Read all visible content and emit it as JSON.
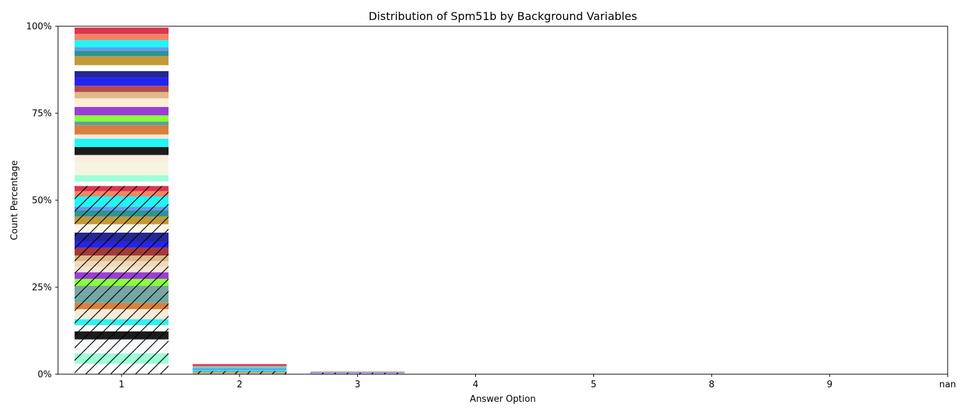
{
  "chart_data": {
    "type": "bar",
    "stacked": true,
    "title": "Distribution of Spm51b by Background Variables",
    "xlabel": "Answer Option",
    "ylabel": "Count Percentage",
    "categories": [
      "1",
      "2",
      "3",
      "4",
      "5",
      "8",
      "9",
      "nan"
    ],
    "ylim": [
      0,
      100
    ],
    "yticks": [
      {
        "value": 0,
        "label": "0%"
      },
      {
        "value": 25,
        "label": "25%"
      },
      {
        "value": 50,
        "label": "50%"
      },
      {
        "value": 75,
        "label": "75%"
      },
      {
        "value": 100,
        "label": "100%"
      }
    ],
    "grid": false,
    "legend": "none",
    "stacks": [
      {
        "category": "1",
        "segments": [
          {
            "value": 3.0,
            "color": "#ffffff",
            "hatch": true
          },
          {
            "value": 3.0,
            "color": "#9cffd6",
            "hatch": true
          },
          {
            "value": 1.5,
            "color": "#f7fbfb",
            "hatch": true
          },
          {
            "value": 2.5,
            "color": "#f8f8ff",
            "hatch": true
          },
          {
            "value": 2.3,
            "color": "#1c1c1c",
            "hatch": true
          },
          {
            "value": 1.8,
            "color": "#ffffff",
            "hatch": true
          },
          {
            "value": 1.7,
            "color": "#2ff2f2",
            "hatch": true
          },
          {
            "value": 1.4,
            "color": "#f3ecdc",
            "hatch": true
          },
          {
            "value": 1.5,
            "color": "#f9ead6",
            "hatch": true
          },
          {
            "value": 1.8,
            "color": "#d8823e",
            "hatch": true
          },
          {
            "value": 2.4,
            "color": "#6fa8a4",
            "hatch": true
          },
          {
            "value": 2.5,
            "color": "#7aa5a5",
            "hatch": true
          },
          {
            "value": 2.0,
            "color": "#8aff3a",
            "hatch": true
          },
          {
            "value": 1.9,
            "color": "#9b3ed6",
            "hatch": true
          },
          {
            "value": 1.6,
            "color": "#f2e6d2",
            "hatch": true
          },
          {
            "value": 1.6,
            "color": "#efd9b8",
            "hatch": true
          },
          {
            "value": 1.6,
            "color": "#deb887",
            "hatch": true
          },
          {
            "value": 2.3,
            "color": "#a33a3a",
            "hatch": true
          },
          {
            "value": 1.7,
            "color": "#2424f0",
            "hatch": true
          },
          {
            "value": 2.6,
            "color": "#262696",
            "hatch": true
          },
          {
            "value": 2.4,
            "color": "#faf6e8",
            "hatch": true
          },
          {
            "value": 2.2,
            "color": "#c49a38",
            "hatch": true
          },
          {
            "value": 1.8,
            "color": "#2e9494",
            "hatch": true
          },
          {
            "value": 1.0,
            "color": "#6699ee",
            "hatch": true
          },
          {
            "value": 3.0,
            "color": "#22f5f5",
            "hatch": true
          },
          {
            "value": 1.5,
            "color": "#f08566",
            "hatch": true
          },
          {
            "value": 1.5,
            "color": "#dc3550",
            "hatch": true
          },
          {
            "value": 1.3,
            "color": "#ffffff",
            "hatch": false
          },
          {
            "value": 1.8,
            "color": "#9dffd8",
            "hatch": false
          },
          {
            "value": 3.8,
            "color": "#f5f5e1",
            "hatch": false
          },
          {
            "value": 2.0,
            "color": "#fbeede",
            "hatch": false
          },
          {
            "value": 2.3,
            "color": "#1c1c1c",
            "hatch": false
          },
          {
            "value": 2.4,
            "color": "#22f5f5",
            "hatch": false
          },
          {
            "value": 1.2,
            "color": "#fbe7d4",
            "hatch": false
          },
          {
            "value": 2.7,
            "color": "#d77f3e",
            "hatch": false
          },
          {
            "value": 1.0,
            "color": "#5aa19e",
            "hatch": false
          },
          {
            "value": 1.8,
            "color": "#8aff3a",
            "hatch": false
          },
          {
            "value": 2.4,
            "color": "#9b3ed6",
            "hatch": false
          },
          {
            "value": 2.5,
            "color": "#fcefd6",
            "hatch": false
          },
          {
            "value": 1.8,
            "color": "#deb887",
            "hatch": false
          },
          {
            "value": 1.8,
            "color": "#b04c4c",
            "hatch": false
          },
          {
            "value": 2.4,
            "color": "#2424f0",
            "hatch": false
          },
          {
            "value": 1.8,
            "color": "#262696",
            "hatch": false
          },
          {
            "value": 1.7,
            "color": "#ffffff",
            "hatch": false
          },
          {
            "value": 2.6,
            "color": "#c49a38",
            "hatch": false
          },
          {
            "value": 1.6,
            "color": "#2e9494",
            "hatch": false
          },
          {
            "value": 1.0,
            "color": "#6699ee",
            "hatch": false
          },
          {
            "value": 2.0,
            "color": "#22f5f5",
            "hatch": false
          },
          {
            "value": 1.8,
            "color": "#f08566",
            "hatch": false
          },
          {
            "value": 1.8,
            "color": "#dc3550",
            "hatch": false
          }
        ]
      },
      {
        "category": "2",
        "segments": [
          {
            "value": 0.5,
            "color": "#f2b880",
            "hatch": true
          },
          {
            "value": 0.4,
            "color": "#6fa8a4",
            "hatch": true
          },
          {
            "value": 0.3,
            "color": "#22f5f5",
            "hatch": false
          },
          {
            "value": 0.5,
            "color": "#6699ee",
            "hatch": false
          },
          {
            "value": 0.4,
            "color": "#22f5f5",
            "hatch": false
          },
          {
            "value": 0.3,
            "color": "#f08566",
            "hatch": false
          },
          {
            "value": 0.5,
            "color": "#dc3550",
            "hatch": false
          }
        ]
      },
      {
        "category": "3",
        "segments": [
          {
            "value": 0.4,
            "color": "#c7c7d6",
            "hatch": true
          },
          {
            "value": 0.2,
            "color": "#6699ee",
            "hatch": false
          },
          {
            "value": 0.2,
            "color": "#f0a090",
            "hatch": false
          }
        ]
      },
      {
        "category": "4",
        "segments": []
      },
      {
        "category": "5",
        "segments": []
      },
      {
        "category": "8",
        "segments": []
      },
      {
        "category": "9",
        "segments": []
      },
      {
        "category": "nan",
        "segments": []
      }
    ]
  }
}
